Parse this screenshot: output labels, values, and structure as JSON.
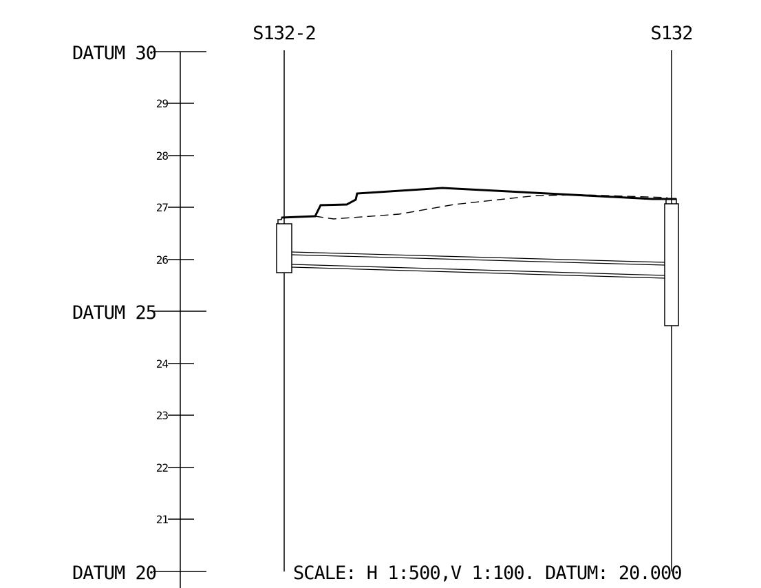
{
  "drawing": {
    "elevation_scale": {
      "min": 20,
      "max": 30,
      "labels": [
        {
          "value": 30,
          "text": "DATUM 30",
          "major": true
        },
        {
          "value": 29,
          "text": "29",
          "major": false
        },
        {
          "value": 28,
          "text": "28",
          "major": false
        },
        {
          "value": 27,
          "text": "27",
          "major": false
        },
        {
          "value": 26,
          "text": "26",
          "major": false
        },
        {
          "value": 25,
          "text": "DATUM 25",
          "major": true
        },
        {
          "value": 24,
          "text": "24",
          "major": false
        },
        {
          "value": 23,
          "text": "23",
          "major": false
        },
        {
          "value": 22,
          "text": "22",
          "major": false
        },
        {
          "value": 21,
          "text": "21",
          "major": false
        },
        {
          "value": 20,
          "text": "DATUM 20",
          "major": true
        }
      ]
    },
    "manholes": {
      "left": {
        "label": "S132-2"
      },
      "right": {
        "label": "S132"
      }
    },
    "scale_note": "SCALE: H 1:500,V 1:100. DATUM: 20.000"
  }
}
